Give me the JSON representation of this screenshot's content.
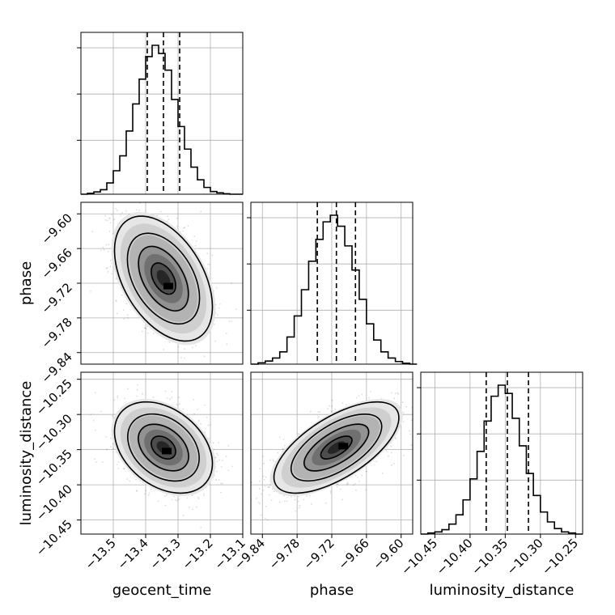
{
  "chart_data": {
    "type": "corner",
    "parameters": [
      "geocent_time",
      "phase",
      "luminosity_distance"
    ],
    "ranges": {
      "geocent_time": [
        -13.6,
        -13.1
      ],
      "phase": [
        -9.86,
        -9.58
      ],
      "luminosity_distance": [
        -10.47,
        -10.24
      ]
    },
    "ticks": {
      "geocent_time": [
        "−13.5",
        "−13.4",
        "−13.3",
        "−13.2",
        "−13.1"
      ],
      "phase": [
        "−9.84",
        "−9.78",
        "−9.72",
        "−9.66",
        "−9.60"
      ],
      "luminosity_distance": [
        "−10.45",
        "−10.40",
        "−10.35",
        "−10.30",
        "−10.25"
      ]
    },
    "tick_values": {
      "geocent_time": [
        -13.5,
        -13.4,
        -13.3,
        -13.2,
        -13.1
      ],
      "phase": [
        -9.84,
        -9.78,
        -9.72,
        -9.66,
        -9.6
      ],
      "luminosity_distance": [
        -10.45,
        -10.4,
        -10.35,
        -10.3,
        -10.25
      ]
    },
    "quantiles": {
      "geocent_time": [
        -13.395,
        -13.345,
        -13.295
      ],
      "phase": [
        -9.745,
        -9.712,
        -9.679
      ],
      "luminosity_distance": [
        -10.377,
        -10.347,
        -10.317
      ]
    },
    "histograms": {
      "geocent_time": {
        "edges_start": -13.6,
        "bin_width": 0.02,
        "counts": [
          0,
          2,
          5,
          10,
          25,
          52,
          85,
          140,
          200,
          255,
          305,
          330,
          312,
          275,
          210,
          150,
          100,
          60,
          32,
          15,
          6,
          3,
          1,
          0,
          0
        ]
      },
      "phase": {
        "edges_start": -9.86,
        "bin_width": 0.0125,
        "counts": [
          0,
          3,
          7,
          14,
          28,
          62,
          110,
          170,
          235,
          285,
          325,
          340,
          315,
          270,
          215,
          148,
          92,
          55,
          28,
          14,
          6,
          2,
          0
        ]
      },
      "luminosity_distance": {
        "edges_start": -10.47,
        "bin_width": 0.01,
        "counts": [
          0,
          2,
          4,
          8,
          18,
          35,
          62,
          100,
          150,
          205,
          250,
          270,
          255,
          210,
          160,
          110,
          70,
          40,
          22,
          10,
          4,
          2,
          0
        ]
      }
    },
    "pairs": [
      {
        "x": "geocent_time",
        "y": "phase",
        "mean": [
          -13.345,
          -9.712
        ],
        "sd": [
          0.07,
          0.05
        ],
        "rho": -0.45,
        "peak": [
          -13.33,
          -9.725
        ]
      },
      {
        "x": "geocent_time",
        "y": "luminosity_distance",
        "mean": [
          -13.345,
          -10.347
        ],
        "sd": [
          0.07,
          0.03
        ],
        "rho": -0.35,
        "peak": [
          -13.335,
          -10.352
        ]
      },
      {
        "x": "phase",
        "y": "luminosity_distance",
        "mean": [
          -9.712,
          -10.347
        ],
        "sd": [
          0.05,
          0.03
        ],
        "rho": 0.65,
        "peak": [
          -9.7,
          -10.345
        ]
      }
    ],
    "contour_levels_sigma": [
      0.5,
      1.0,
      1.5,
      2.0
    ],
    "grid": true
  }
}
